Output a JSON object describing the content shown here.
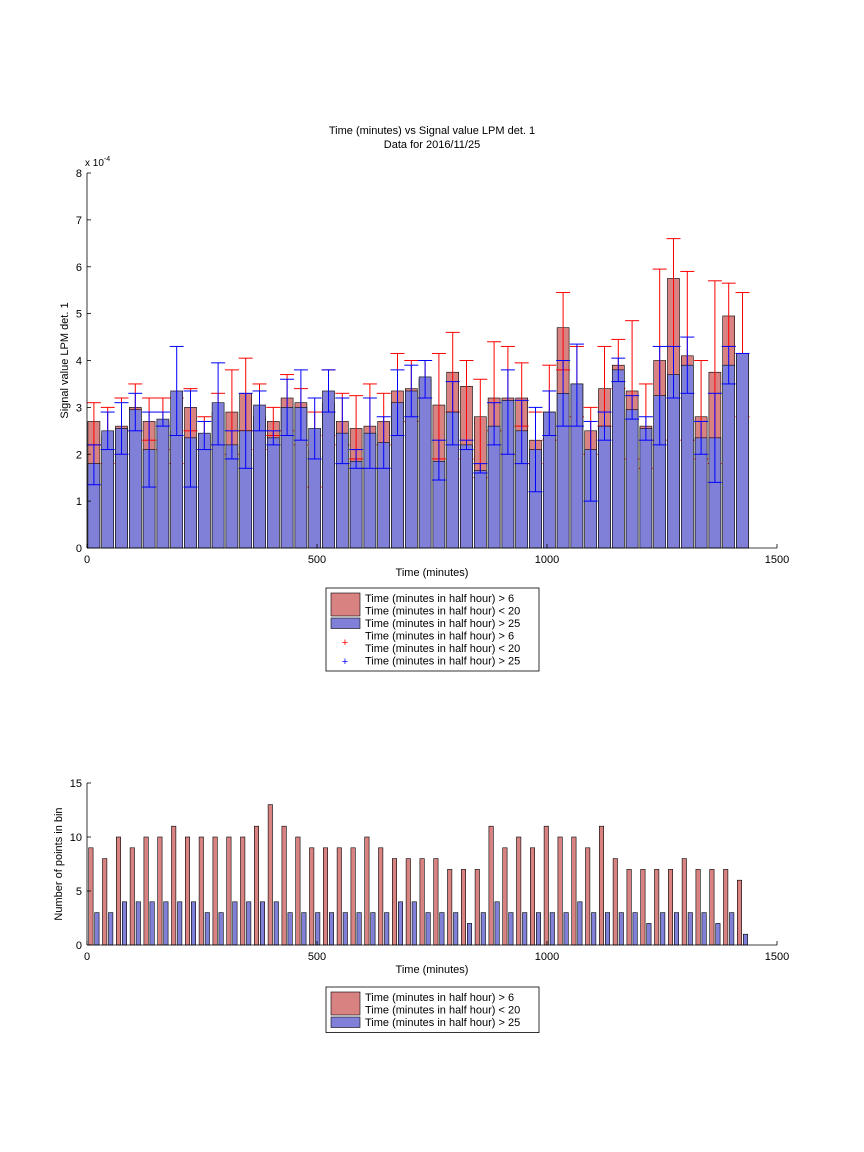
{
  "colors": {
    "red_fill": "#d98282",
    "blue_fill": "#8080d8",
    "red_err": "#ff0000",
    "blue_err": "#0000ff",
    "bar_edge": "#000000"
  },
  "chart_data": [
    {
      "type": "bar",
      "title": "Time (minutes) vs Signal value LPM det. 1",
      "subtitle": "Data for 2016/11/25",
      "xlabel": "Time (minutes)",
      "ylabel": "Signal value LPM det. 1",
      "y_exponent_label": "x 10",
      "y_exponent_power": "-4",
      "xlim": [
        0,
        1500
      ],
      "ylim": [
        0,
        8
      ],
      "y_scale_factor": 0.0001,
      "xticks": [
        "0",
        "500",
        "1000",
        "1500"
      ],
      "yticks": [
        "0",
        "1",
        "2",
        "3",
        "4",
        "5",
        "6",
        "7",
        "8"
      ],
      "x": [
        15,
        45,
        75,
        105,
        135,
        165,
        195,
        225,
        255,
        285,
        315,
        345,
        375,
        405,
        435,
        465,
        495,
        525,
        555,
        585,
        615,
        645,
        675,
        705,
        735,
        765,
        795,
        825,
        855,
        885,
        915,
        945,
        975,
        1005,
        1035,
        1065,
        1095,
        1125,
        1155,
        1185,
        1215,
        1245,
        1275,
        1305,
        1335,
        1365,
        1395,
        1425
      ],
      "series": [
        {
          "name": "Time (minutes in half hour) > 6\nTime (minutes in half hour) < 20",
          "color": "#d98282",
          "values": [
            2.7,
            2.4,
            2.6,
            3.0,
            2.7,
            2.7,
            2.5,
            3.0,
            2.4,
            2.9,
            2.9,
            3.3,
            2.8,
            2.7,
            3.2,
            3.1,
            2.1,
            3.1,
            2.7,
            2.55,
            2.6,
            2.7,
            3.35,
            3.4,
            3.6,
            3.05,
            3.75,
            3.45,
            2.8,
            3.2,
            3.2,
            3.2,
            2.3,
            2.9,
            4.7,
            3.5,
            2.5,
            3.4,
            3.9,
            3.35,
            2.6,
            4.0,
            5.75,
            4.1,
            2.8,
            3.75,
            4.95,
            4.15
          ],
          "err_low": [
            2.2,
            1.8,
            2.0,
            2.5,
            2.3,
            2.1,
            1.8,
            2.5,
            2.1,
            2.2,
            2.0,
            2.5,
            2.1,
            2.4,
            2.5,
            2.2,
            1.3,
            2.4,
            2.2,
            1.9,
            1.7,
            2.2,
            2.4,
            2.7,
            3.2,
            1.9,
            2.9,
            1.9,
            1.5,
            2.5,
            2.0,
            2.6,
            1.8,
            2.3,
            3.8,
            2.8,
            2.0,
            2.6,
            3.4,
            1.9,
            1.7,
            2.3,
            3.2,
            2.3,
            1.9,
            1.8,
            4.3,
            2.8
          ],
          "err_high": [
            3.1,
            3.0,
            3.2,
            3.5,
            3.2,
            3.2,
            3.2,
            3.4,
            2.8,
            3.3,
            3.8,
            4.05,
            3.5,
            3.0,
            3.7,
            3.4,
            2.9,
            3.8,
            3.3,
            3.25,
            3.5,
            3.3,
            4.15,
            4.0,
            4.0,
            4.15,
            4.6,
            4.0,
            3.6,
            4.4,
            4.3,
            3.95,
            2.9,
            3.9,
            5.45,
            4.3,
            3.0,
            4.3,
            4.45,
            4.85,
            3.5,
            5.95,
            6.6,
            5.9,
            4.0,
            5.7,
            5.65,
            5.45
          ]
        },
        {
          "name": "Time (minutes in half hour) > 25",
          "color": "#8080d8",
          "values": [
            1.8,
            2.5,
            2.55,
            2.95,
            2.1,
            2.75,
            3.35,
            2.35,
            2.45,
            3.1,
            2.2,
            2.5,
            3.05,
            2.35,
            3.0,
            3.0,
            2.55,
            3.35,
            2.45,
            1.85,
            2.45,
            2.25,
            3.1,
            3.35,
            3.65,
            1.85,
            2.9,
            2.2,
            1.65,
            2.6,
            3.15,
            2.5,
            2.1,
            2.9,
            3.3,
            3.5,
            2.1,
            2.6,
            3.8,
            2.95,
            2.55,
            3.25,
            3.7,
            3.9,
            2.35,
            2.35,
            3.9,
            4.15
          ],
          "err_low": [
            1.35,
            2.1,
            2.0,
            2.5,
            1.3,
            2.6,
            2.4,
            1.3,
            2.1,
            2.2,
            1.9,
            1.7,
            2.5,
            2.2,
            2.4,
            2.3,
            1.9,
            2.9,
            1.8,
            1.7,
            1.7,
            1.7,
            2.4,
            2.8,
            3.2,
            1.45,
            2.2,
            2.1,
            1.6,
            2.2,
            2.0,
            1.8,
            1.2,
            2.4,
            2.6,
            2.6,
            1.0,
            2.3,
            3.55,
            2.75,
            2.3,
            2.2,
            3.2,
            3.3,
            2.0,
            1.4,
            3.5,
            4.15
          ],
          "err_high": [
            2.2,
            2.9,
            3.1,
            3.3,
            2.9,
            2.9,
            4.3,
            3.35,
            2.7,
            3.95,
            2.5,
            3.3,
            3.35,
            2.5,
            3.6,
            3.8,
            3.2,
            3.8,
            3.2,
            2.1,
            3.2,
            2.8,
            3.8,
            3.9,
            4.0,
            2.3,
            3.55,
            2.3,
            1.8,
            3.1,
            3.8,
            3.15,
            3.0,
            3.35,
            4.0,
            4.35,
            2.7,
            2.9,
            4.05,
            3.25,
            2.8,
            4.3,
            4.3,
            4.5,
            2.7,
            3.3,
            4.3,
            4.15
          ]
        }
      ],
      "legend": {
        "placement": "below-center",
        "entries": [
          {
            "kind": "patch",
            "color": "#d98282",
            "lines": [
              "Time (minutes in half hour) > 6",
              "Time (minutes in half hour) < 20"
            ]
          },
          {
            "kind": "patch",
            "color": "#8080d8",
            "lines": [
              "Time (minutes in half hour) > 25"
            ]
          },
          {
            "kind": "marker",
            "color": "#ff0000",
            "lines": [
              "Time (minutes in half hour) > 6",
              "Time (minutes in half hour) < 20"
            ]
          },
          {
            "kind": "marker",
            "color": "#0000ff",
            "lines": [
              "Time (minutes in half hour) > 25"
            ]
          }
        ]
      }
    },
    {
      "type": "bar",
      "xlabel": "Time (minutes)",
      "ylabel": "Number of points in bin",
      "xlim": [
        0,
        1500
      ],
      "ylim": [
        0,
        15
      ],
      "xticks": [
        "0",
        "500",
        "1000",
        "1500"
      ],
      "yticks": [
        "0",
        "5",
        "10",
        "15"
      ],
      "x": [
        15,
        45,
        75,
        105,
        135,
        165,
        195,
        225,
        255,
        285,
        315,
        345,
        375,
        405,
        435,
        465,
        495,
        525,
        555,
        585,
        615,
        645,
        675,
        705,
        735,
        765,
        795,
        825,
        855,
        885,
        915,
        945,
        975,
        1005,
        1035,
        1065,
        1095,
        1125,
        1155,
        1185,
        1215,
        1245,
        1275,
        1305,
        1335,
        1365,
        1395,
        1425
      ],
      "series": [
        {
          "name": "Time (minutes in half hour) > 6\nTime (minutes in half hour) < 20",
          "color": "#d98282",
          "values": [
            9,
            8,
            10,
            9,
            10,
            10,
            11,
            10,
            10,
            10,
            10,
            10,
            11,
            13,
            11,
            10,
            9,
            9,
            9,
            9,
            10,
            9,
            8,
            8,
            8,
            8,
            7,
            7,
            7,
            11,
            9,
            10,
            9,
            11,
            10,
            10,
            9,
            11,
            8,
            7,
            7,
            7,
            7,
            8,
            7,
            7,
            7,
            6
          ]
        },
        {
          "name": "Time (minutes in half hour) > 25",
          "color": "#8080d8",
          "values": [
            3,
            3,
            4,
            4,
            4,
            4,
            4,
            4,
            3,
            3,
            4,
            4,
            4,
            4,
            3,
            3,
            3,
            3,
            3,
            3,
            3,
            3,
            4,
            4,
            3,
            3,
            3,
            2,
            3,
            4,
            3,
            3,
            3,
            3,
            3,
            4,
            3,
            3,
            3,
            3,
            2,
            3,
            3,
            3,
            3,
            2,
            3,
            1
          ]
        }
      ],
      "legend": {
        "placement": "below-center",
        "entries": [
          {
            "kind": "patch",
            "color": "#d98282",
            "lines": [
              "Time (minutes in half hour) > 6",
              "Time (minutes in half hour) < 20"
            ]
          },
          {
            "kind": "patch",
            "color": "#8080d8",
            "lines": [
              "Time (minutes in half hour) > 25"
            ]
          }
        ]
      }
    }
  ]
}
